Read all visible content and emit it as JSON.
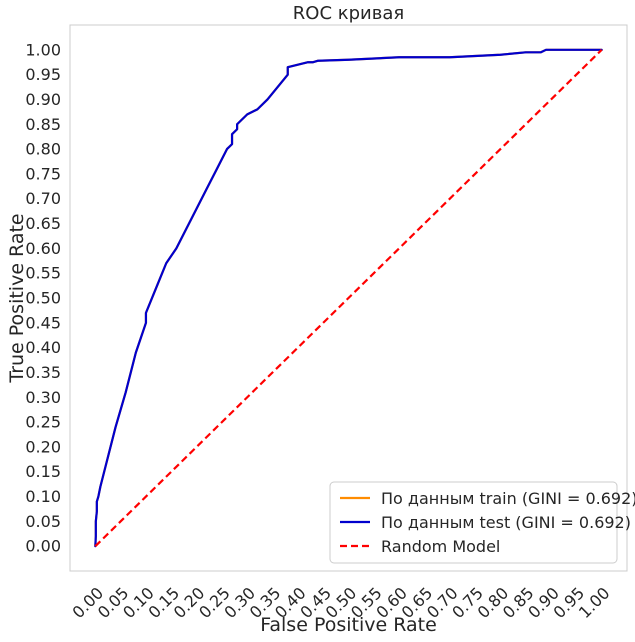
{
  "chart_data": {
    "type": "line",
    "title": "ROC кривая",
    "xlabel": "False Positive Rate",
    "ylabel": "True Positive Rate",
    "xlim": [
      -0.05,
      1.05
    ],
    "ylim": [
      -0.05,
      1.05
    ],
    "x_ticks": [
      "0.00",
      "0.05",
      "0.10",
      "0.15",
      "0.20",
      "0.25",
      "0.30",
      "0.35",
      "0.40",
      "0.45",
      "0.50",
      "0.55",
      "0.60",
      "0.65",
      "0.70",
      "0.75",
      "0.80",
      "0.85",
      "0.90",
      "0.95",
      "1.00"
    ],
    "y_ticks": [
      "0.00",
      "0.05",
      "0.10",
      "0.15",
      "0.20",
      "0.25",
      "0.30",
      "0.35",
      "0.40",
      "0.45",
      "0.50",
      "0.55",
      "0.60",
      "0.65",
      "0.70",
      "0.75",
      "0.80",
      "0.85",
      "0.90",
      "0.95",
      "1.00"
    ],
    "grid": false,
    "legend_position": "bottom-right",
    "series": [
      {
        "name": "По данным train (GINI = 0.692)",
        "color": "#ff8c00",
        "style": "solid",
        "x": [
          0.0,
          0.001,
          0.001,
          0.003,
          0.003,
          0.006,
          0.01,
          0.02,
          0.04,
          0.06,
          0.08,
          0.09,
          0.1,
          0.1,
          0.12,
          0.14,
          0.16,
          0.18,
          0.2,
          0.22,
          0.24,
          0.26,
          0.27,
          0.27,
          0.28,
          0.28,
          0.3,
          0.32,
          0.34,
          0.36,
          0.38,
          0.38,
          0.4,
          0.42,
          0.43,
          0.44,
          0.5,
          0.6,
          0.7,
          0.8,
          0.85,
          0.88,
          0.89,
          0.89,
          1.0
        ],
        "y": [
          0.0,
          0.02,
          0.05,
          0.07,
          0.09,
          0.1,
          0.12,
          0.16,
          0.24,
          0.31,
          0.39,
          0.42,
          0.45,
          0.47,
          0.52,
          0.57,
          0.6,
          0.64,
          0.68,
          0.72,
          0.76,
          0.8,
          0.81,
          0.83,
          0.84,
          0.85,
          0.87,
          0.88,
          0.9,
          0.925,
          0.95,
          0.965,
          0.97,
          0.975,
          0.975,
          0.978,
          0.98,
          0.985,
          0.985,
          0.99,
          0.995,
          0.995,
          1.0,
          1.0,
          1.0
        ]
      },
      {
        "name": "По данным test (GINI = 0.692)",
        "color": "#0000cd",
        "style": "solid",
        "x": [
          0.0,
          0.001,
          0.001,
          0.003,
          0.003,
          0.006,
          0.01,
          0.02,
          0.04,
          0.06,
          0.08,
          0.09,
          0.1,
          0.1,
          0.12,
          0.14,
          0.16,
          0.18,
          0.2,
          0.22,
          0.24,
          0.26,
          0.27,
          0.27,
          0.28,
          0.28,
          0.3,
          0.32,
          0.34,
          0.36,
          0.38,
          0.38,
          0.4,
          0.42,
          0.43,
          0.44,
          0.5,
          0.6,
          0.7,
          0.8,
          0.85,
          0.88,
          0.89,
          0.89,
          1.0
        ],
        "y": [
          0.0,
          0.02,
          0.05,
          0.07,
          0.09,
          0.1,
          0.12,
          0.16,
          0.24,
          0.31,
          0.39,
          0.42,
          0.45,
          0.47,
          0.52,
          0.57,
          0.6,
          0.64,
          0.68,
          0.72,
          0.76,
          0.8,
          0.81,
          0.83,
          0.84,
          0.85,
          0.87,
          0.88,
          0.9,
          0.925,
          0.95,
          0.965,
          0.97,
          0.975,
          0.975,
          0.978,
          0.98,
          0.985,
          0.985,
          0.99,
          0.995,
          0.995,
          1.0,
          1.0,
          1.0
        ]
      },
      {
        "name": "Random Model",
        "color": "#ff0000",
        "style": "dashed",
        "x": [
          0.0,
          1.0
        ],
        "y": [
          0.0,
          1.0
        ]
      }
    ]
  }
}
